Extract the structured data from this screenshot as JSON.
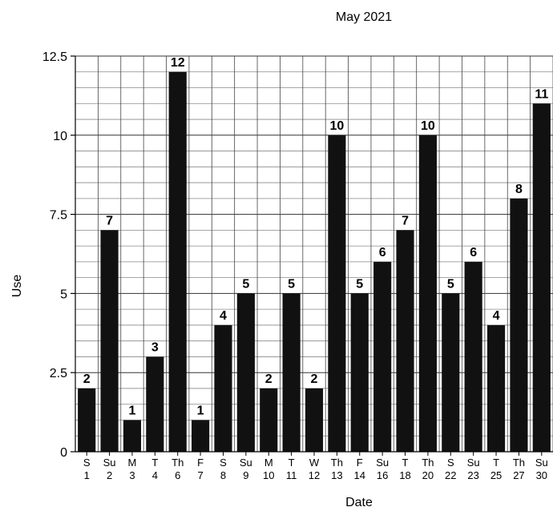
{
  "chart_data": {
    "type": "bar",
    "title": "May 2021",
    "xlabel": "Date",
    "ylabel": "Use",
    "ylim": [
      0,
      12.5
    ],
    "yticks": [
      "0",
      "2.5",
      "5",
      "7.5",
      "10",
      "12.5"
    ],
    "grid": true,
    "bar_color": "#111111",
    "categories": [
      {
        "day": "S",
        "date": "1"
      },
      {
        "day": "Su",
        "date": "2"
      },
      {
        "day": "M",
        "date": "3"
      },
      {
        "day": "T",
        "date": "4"
      },
      {
        "day": "Th",
        "date": "6"
      },
      {
        "day": "F",
        "date": "7"
      },
      {
        "day": "S",
        "date": "8"
      },
      {
        "day": "Su",
        "date": "9"
      },
      {
        "day": "M",
        "date": "10"
      },
      {
        "day": "T",
        "date": "11"
      },
      {
        "day": "W",
        "date": "12"
      },
      {
        "day": "Th",
        "date": "13"
      },
      {
        "day": "F",
        "date": "14"
      },
      {
        "day": "Su",
        "date": "16"
      },
      {
        "day": "T",
        "date": "18"
      },
      {
        "day": "Th",
        "date": "20"
      },
      {
        "day": "S",
        "date": "22"
      },
      {
        "day": "Su",
        "date": "23"
      },
      {
        "day": "T",
        "date": "25"
      },
      {
        "day": "Th",
        "date": "27"
      },
      {
        "day": "Su",
        "date": "30"
      }
    ],
    "values": [
      2,
      7,
      1,
      3,
      12,
      1,
      4,
      5,
      2,
      5,
      2,
      10,
      5,
      6,
      7,
      10,
      5,
      6,
      4,
      8,
      11
    ]
  }
}
